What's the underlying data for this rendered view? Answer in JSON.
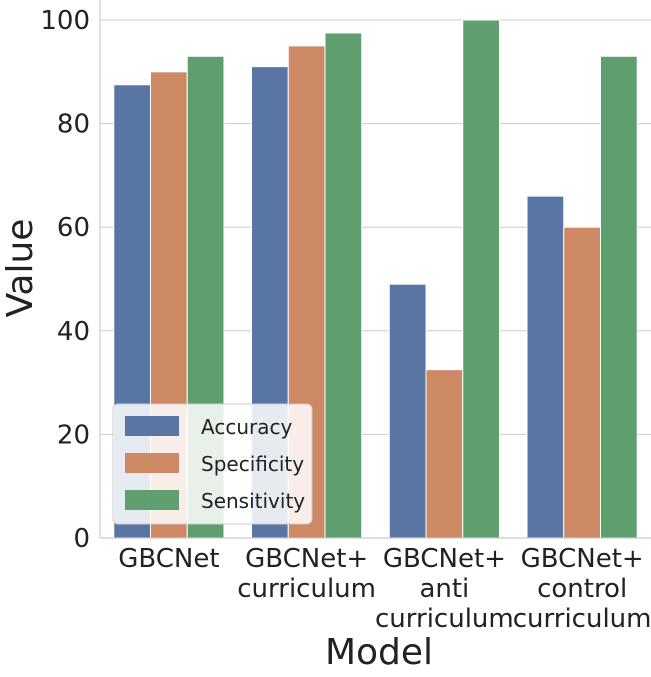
{
  "chart_data": {
    "type": "bar",
    "xlabel": "Model",
    "ylabel": "Value",
    "ylim": [
      0,
      100
    ],
    "yticks": [
      0,
      20,
      40,
      60,
      80,
      100
    ],
    "categories": [
      [
        "GBCNet"
      ],
      [
        "GBCNet+",
        "curriculum"
      ],
      [
        "GBCNet+",
        "anti",
        "curriculum"
      ],
      [
        "GBCNet+",
        "control",
        "curriculum"
      ]
    ],
    "series": [
      {
        "name": "Accuracy",
        "color": "#5875a4",
        "values": [
          87.5,
          91.0,
          49.0,
          66.0
        ]
      },
      {
        "name": "Specificity",
        "color": "#cc8963",
        "values": [
          90.0,
          95.0,
          32.5,
          60.0
        ]
      },
      {
        "name": "Sensitivity",
        "color": "#5f9e6e",
        "values": [
          93.0,
          97.5,
          100.0,
          93.0
        ]
      }
    ],
    "grid": "horizontal",
    "legend_position": "lower-left"
  }
}
